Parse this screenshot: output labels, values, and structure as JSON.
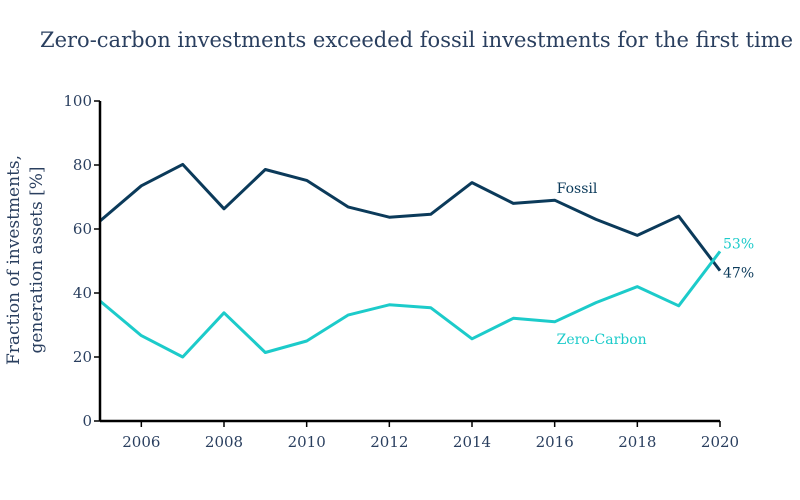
{
  "chart_data": {
    "type": "line",
    "title": "Zero-carbon investments exceeded fossil investments for the first time",
    "ylabel_lines": [
      "Fraction of investments,",
      "generation assets [%]"
    ],
    "xlabel": "",
    "xlim": [
      2005,
      2020
    ],
    "ylim": [
      0,
      100
    ],
    "x_ticks": [
      2006,
      2008,
      2010,
      2012,
      2014,
      2016,
      2018,
      2020
    ],
    "y_ticks": [
      0,
      20,
      40,
      60,
      80,
      100
    ],
    "grid": false,
    "x": [
      2005,
      2006,
      2007,
      2008,
      2009,
      2010,
      2011,
      2012,
      2013,
      2014,
      2015,
      2016,
      2017,
      2018,
      2019,
      2020
    ],
    "series": [
      {
        "name": "Fossil",
        "color": "#0b3a5a",
        "values": [
          62.5,
          73.5,
          80.2,
          66.3,
          78.6,
          75.2,
          66.9,
          63.7,
          64.6,
          74.5,
          68.0,
          69.0,
          63.0,
          58.0,
          64.0,
          47
        ],
        "end_label": "47%"
      },
      {
        "name": "Zero-Carbon",
        "color": "#1ccbca",
        "values": [
          37.5,
          26.7,
          20.0,
          33.8,
          21.4,
          25.0,
          33.1,
          36.3,
          35.4,
          25.7,
          32.1,
          31.0,
          37.0,
          42.0,
          36.0,
          53
        ],
        "end_label": "53%"
      }
    ]
  }
}
